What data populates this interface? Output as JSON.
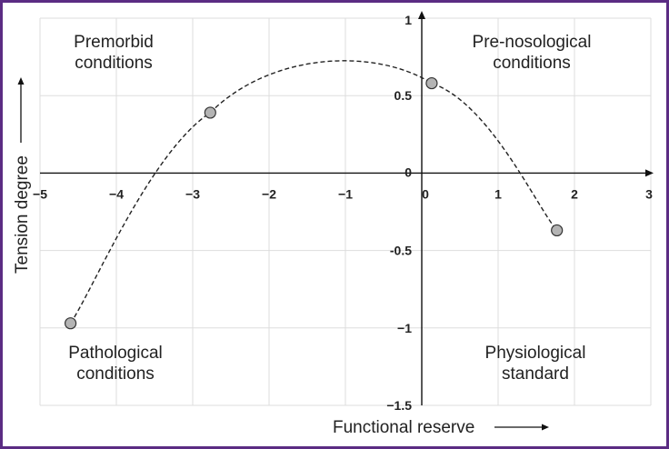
{
  "chart_data": {
    "type": "scatter",
    "xlabel": "Functional reserve",
    "ylabel": "Tension degree",
    "xlim": [
      -5,
      3
    ],
    "ylim": [
      -1.5,
      1
    ],
    "x_ticks": [
      "−5",
      "−4",
      "−3",
      "−2",
      "−1",
      "0",
      "1",
      "2",
      "3"
    ],
    "y_ticks": [
      "1",
      "0.5",
      "0",
      "-0.5",
      "−1",
      "−1.5"
    ],
    "grid": true,
    "series": [
      {
        "points": [
          {
            "x": -4.6,
            "y": -0.97
          },
          {
            "x": -2.77,
            "y": 0.39
          },
          {
            "x": 0.13,
            "y": 0.58
          },
          {
            "x": 1.77,
            "y": -0.37
          }
        ],
        "trend_line": "dashed smooth curve"
      }
    ],
    "annotations": [
      {
        "key": "premorbid",
        "line1": "Premorbid",
        "line2": "conditions",
        "position": "top-left"
      },
      {
        "key": "prenosological",
        "line1": "Pre-nosological",
        "line2": "conditions",
        "position": "top-right"
      },
      {
        "key": "pathological",
        "line1": "Pathological",
        "line2": "conditions",
        "position": "bottom-left"
      },
      {
        "key": "physiological",
        "line1": "Physiological",
        "line2": "standard",
        "position": "bottom-right"
      }
    ]
  },
  "colors": {
    "frame": "#5b2c83",
    "grid": "#dddddd",
    "axis": "#111111",
    "marker_fill": "#b4b4b4",
    "marker_stroke": "#333333"
  }
}
